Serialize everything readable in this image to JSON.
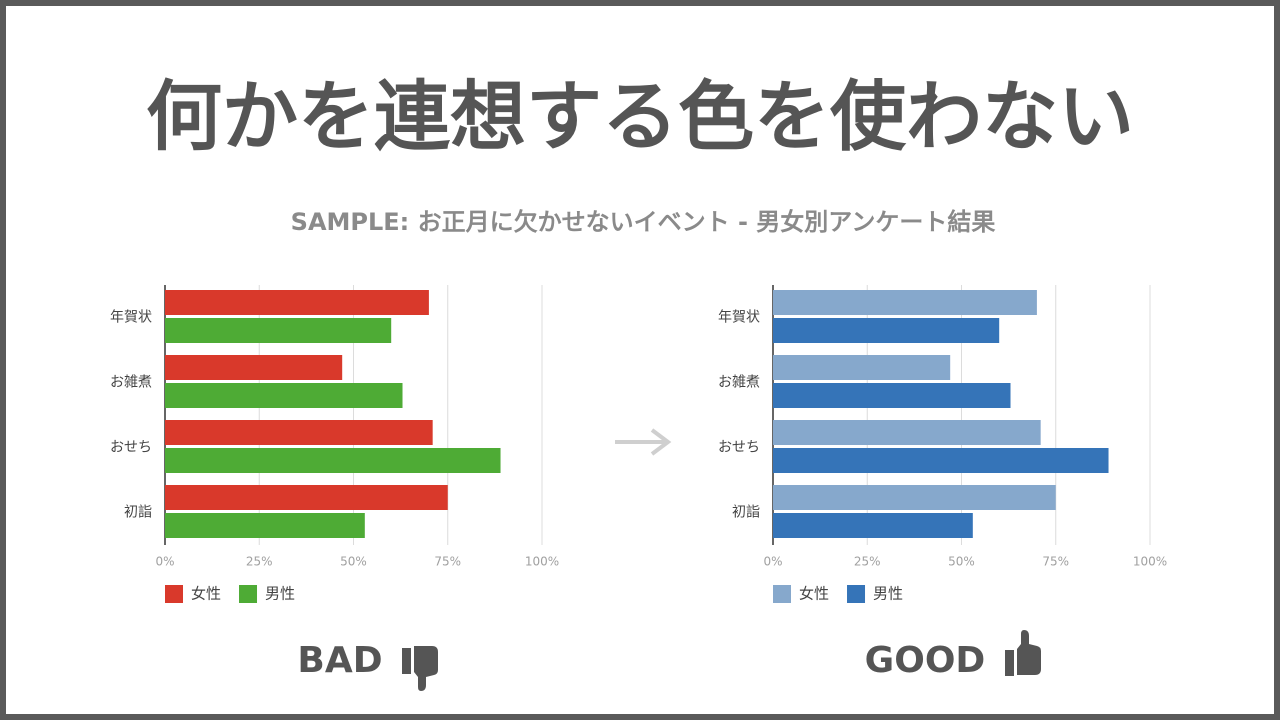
{
  "title": "何かを連想する色を使わない",
  "subtitle": "SAMPLE:  お正月に欠かせないイベント - 男女別アンケート結果",
  "chart_data": [
    {
      "type": "bar",
      "orientation": "horizontal",
      "caption": "BAD",
      "categories": [
        "年賀状",
        "お雑煮",
        "おせち",
        "初詣"
      ],
      "series": [
        {
          "name": "女性",
          "color": "#d9392b",
          "values": [
            70,
            47,
            71,
            75
          ]
        },
        {
          "name": "男性",
          "color": "#4eab35",
          "values": [
            60,
            63,
            89,
            53
          ]
        }
      ],
      "xlim": [
        0,
        100
      ],
      "xticks": [
        {
          "value": 0,
          "label": "0%"
        },
        {
          "value": 25,
          "label": "25%"
        },
        {
          "value": 50,
          "label": "50%"
        },
        {
          "value": 75,
          "label": "75%"
        },
        {
          "value": 100,
          "label": "100%"
        }
      ],
      "grid": true,
      "legend": "bottom-left"
    },
    {
      "type": "bar",
      "orientation": "horizontal",
      "caption": "GOOD",
      "categories": [
        "年賀状",
        "お雑煮",
        "おせち",
        "初詣"
      ],
      "series": [
        {
          "name": "女性",
          "color": "#86a8cc",
          "values": [
            70,
            47,
            71,
            75
          ]
        },
        {
          "name": "男性",
          "color": "#3574b8",
          "values": [
            60,
            63,
            89,
            53
          ]
        }
      ],
      "xlim": [
        0,
        100
      ],
      "xticks": [
        {
          "value": 0,
          "label": "0%"
        },
        {
          "value": 25,
          "label": "25%"
        },
        {
          "value": 50,
          "label": "50%"
        },
        {
          "value": 75,
          "label": "75%"
        },
        {
          "value": 100,
          "label": "100%"
        }
      ],
      "grid": true,
      "legend": "bottom-left"
    }
  ]
}
